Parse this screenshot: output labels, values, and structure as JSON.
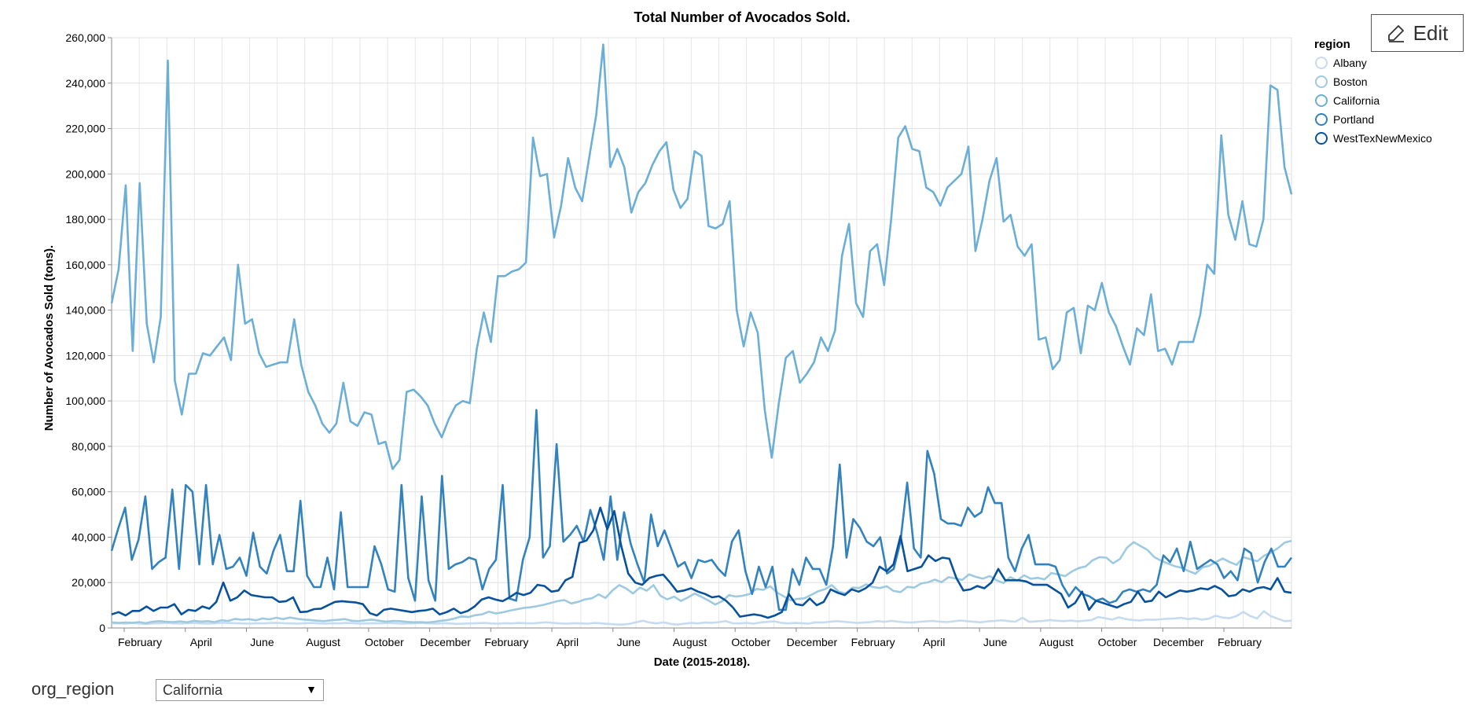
{
  "chart_data": {
    "type": "line",
    "title": "Total Number of Avocados Sold.",
    "xlabel": "Date (2015-2018).",
    "ylabel": "Number of Avocados Sold (tons).",
    "ylim": [
      0,
      260000
    ],
    "yticks": [
      0,
      20000,
      40000,
      60000,
      80000,
      100000,
      120000,
      140000,
      160000,
      180000,
      200000,
      220000,
      240000,
      260000
    ],
    "ytick_labels": [
      "0",
      "20,000",
      "40,000",
      "60,000",
      "80,000",
      "100,000",
      "120,000",
      "140,000",
      "160,000",
      "180,000",
      "200,000",
      "220,000",
      "240,000",
      "260,000"
    ],
    "xtick_labels": [
      "February",
      "April",
      "June",
      "August",
      "October",
      "December",
      "February",
      "April",
      "June",
      "August",
      "October",
      "December",
      "February",
      "April",
      "June",
      "August",
      "October",
      "December",
      "February"
    ],
    "grid": true,
    "legend": {
      "title": "region",
      "position": "top-right"
    },
    "series": [
      {
        "name": "Albany",
        "color": "#c6dbef",
        "values": [
          2000,
          2100,
          1900,
          2200,
          2000,
          1800,
          2000,
          2100,
          2300,
          2000,
          1900,
          2100,
          2200,
          2000,
          1900,
          2100,
          2300,
          2200,
          2100,
          2000,
          1900,
          2100,
          2000,
          2200,
          2300,
          2100,
          2000,
          1900,
          2100,
          2200,
          2000,
          1900,
          2100,
          2000,
          2200,
          2100,
          1900,
          2000,
          2100,
          2000,
          2200,
          2100,
          1900,
          2000,
          2100,
          2200,
          2000,
          1900,
          2100,
          2000,
          1800,
          1900,
          2000,
          2100,
          2200,
          2000,
          1900,
          2100,
          2000,
          2200,
          2100,
          2000,
          2300,
          2500,
          2200,
          2000,
          1900,
          2100,
          2000,
          1900,
          2200,
          2000,
          1800,
          1600,
          1500,
          1800,
          2500,
          3200,
          2400,
          2000,
          2500,
          1800,
          1500,
          1900,
          2200,
          2000,
          2400,
          2300,
          2600,
          3000,
          2100,
          2000,
          2200,
          1900,
          2400,
          2700,
          2900,
          2300,
          2000,
          2200,
          2100,
          1900,
          2500,
          2400,
          2700,
          3000,
          2800,
          2500,
          2200,
          2400,
          2600,
          3000,
          2700,
          3100,
          2800,
          2500,
          2400,
          2700,
          2900,
          3100,
          2800,
          2600,
          2900,
          3300,
          3000,
          2700,
          2500,
          2900,
          3100,
          3400,
          3000,
          2800,
          4500,
          2700,
          2900,
          3100,
          3500,
          3200,
          3000,
          3300,
          2900,
          3200,
          3500,
          4800,
          4300,
          3700,
          4700,
          3900,
          3500,
          3300,
          3700,
          3600,
          3800,
          4100,
          4200,
          4500,
          3900,
          4300,
          3700,
          4100,
          5400,
          4600,
          4300,
          5200,
          7100,
          5300,
          4200,
          7400,
          5200,
          4100,
          3000,
          3200
        ]
      },
      {
        "name": "Boston",
        "color": "#9ecae1",
        "values": [
          2500,
          2200,
          2400,
          2300,
          2600,
          2100,
          2800,
          3000,
          2700,
          2600,
          2900,
          2500,
          3200,
          2800,
          3000,
          2600,
          3400,
          3100,
          4000,
          3600,
          3900,
          3400,
          4200,
          3800,
          4500,
          3900,
          4600,
          4100,
          3700,
          3500,
          3200,
          3000,
          3400,
          3600,
          3900,
          3200,
          3000,
          3400,
          3700,
          3200,
          2800,
          3100,
          3000,
          2700,
          2500,
          2600,
          2400,
          2700,
          3200,
          3500,
          4200,
          5100,
          4800,
          5600,
          6000,
          7200,
          6400,
          6900,
          7600,
          8200,
          8800,
          9100,
          9600,
          10200,
          11000,
          11800,
          12300,
          10800,
          11500,
          12600,
          13100,
          14800,
          13200,
          16500,
          18900,
          17400,
          15200,
          17800,
          16400,
          18900,
          14200,
          12600,
          13800,
          11900,
          13400,
          15200,
          13700,
          12100,
          10300,
          11800,
          14500,
          13800,
          14200,
          15000,
          17200,
          16800,
          18400,
          15600,
          13900,
          12200,
          12800,
          13100,
          14600,
          16200,
          17100,
          18900,
          16000,
          15200,
          17800,
          17600,
          19200,
          18000,
          17600,
          18400,
          16300,
          15800,
          18100,
          17800,
          19600,
          20100,
          21300,
          20200,
          22400,
          21800,
          21200,
          23600,
          22500,
          21700,
          22900,
          21000,
          19800,
          22400,
          20900,
          23200,
          21700,
          22100,
          21400,
          24200,
          23600,
          22800,
          24900,
          26400,
          27100,
          29800,
          31200,
          31000,
          28500,
          30400,
          35300,
          37800,
          36100,
          34400,
          31200,
          29600,
          28400,
          27200,
          26500,
          25100,
          23900,
          26700,
          27400,
          29100,
          30600,
          29000,
          27800,
          31200,
          30300,
          29400,
          31800,
          33200,
          35100,
          37600,
          38400
        ]
      },
      {
        "name": "California",
        "color": "#6baed6",
        "values": [
          143000,
          158000,
          195000,
          122000,
          196000,
          134000,
          117000,
          137000,
          250000,
          109000,
          94000,
          112000,
          112000,
          121000,
          120000,
          124000,
          128000,
          118000,
          160000,
          134000,
          136000,
          121000,
          115000,
          116000,
          117000,
          117000,
          136000,
          116000,
          104000,
          98000,
          90000,
          86000,
          90000,
          108000,
          91000,
          89000,
          95000,
          94000,
          81000,
          82000,
          70000,
          74000,
          104000,
          105000,
          102000,
          98000,
          90000,
          84000,
          92000,
          98000,
          100000,
          99000,
          123000,
          139000,
          126000,
          155000,
          155000,
          157000,
          158000,
          161000,
          216000,
          199000,
          200000,
          172000,
          186000,
          207000,
          194000,
          188000,
          207000,
          226000,
          257000,
          203000,
          211000,
          203000,
          183000,
          192000,
          196000,
          204000,
          210000,
          214000,
          193000,
          185000,
          189000,
          210000,
          208000,
          177000,
          176000,
          178000,
          188000,
          140000,
          124000,
          139000,
          130000,
          96000,
          75000,
          99000,
          119000,
          122000,
          108000,
          112000,
          117000,
          128000,
          122000,
          131000,
          164000,
          178000,
          143000,
          137000,
          166000,
          169000,
          151000,
          180000,
          216000,
          221000,
          211000,
          210000,
          194000,
          192000,
          186000,
          194000,
          197000,
          200000,
          212000,
          166000,
          180000,
          197000,
          207000,
          179000,
          182000,
          168000,
          164000,
          169000,
          127000,
          128000,
          114000,
          118000,
          139000,
          141000,
          121000,
          142000,
          140000,
          152000,
          139000,
          133000,
          124000,
          116000,
          132000,
          129000,
          147000,
          122000,
          123000,
          116000,
          126000,
          126000,
          126000,
          138000,
          160000,
          156000,
          217000,
          182000,
          171000,
          188000,
          169000,
          168000,
          180000,
          239000,
          237000,
          203000,
          191000
        ]
      },
      {
        "name": "Portland",
        "color": "#3182bd",
        "values": [
          34000,
          44000,
          53000,
          30000,
          39000,
          58000,
          26000,
          29000,
          31000,
          61000,
          26000,
          63000,
          60000,
          28000,
          63000,
          28000,
          41000,
          26000,
          27000,
          31000,
          23000,
          42000,
          27000,
          24000,
          34000,
          41000,
          25000,
          25000,
          56000,
          23000,
          18000,
          18000,
          31000,
          17000,
          51000,
          18000,
          18000,
          18000,
          18000,
          36000,
          28000,
          17000,
          16000,
          63000,
          22000,
          12000,
          58000,
          21000,
          12000,
          67000,
          26000,
          28000,
          29000,
          31000,
          30000,
          17000,
          26000,
          30000,
          63000,
          13000,
          12000,
          30000,
          40000,
          96000,
          31000,
          36000,
          81000,
          38000,
          41000,
          45000,
          38000,
          52000,
          42000,
          30000,
          58000,
          30000,
          51000,
          37000,
          28000,
          20000,
          50000,
          36000,
          43000,
          35000,
          27000,
          29000,
          22000,
          30000,
          29000,
          30000,
          26000,
          23000,
          38000,
          43000,
          25000,
          15000,
          27000,
          18000,
          27000,
          8000,
          8000,
          26000,
          19000,
          31000,
          26000,
          26000,
          19000,
          36000,
          72000,
          31000,
          48000,
          44000,
          38000,
          36000,
          40000,
          24000,
          26000,
          38000,
          64000,
          35000,
          31000,
          78000,
          68000,
          48000,
          46000,
          46000,
          45000,
          53000,
          49000,
          51000,
          62000,
          55000,
          55000,
          31000,
          25000,
          35000,
          41000,
          28000,
          28000,
          28000,
          27000,
          19000,
          14000,
          18000,
          15000,
          14000,
          12000,
          13000,
          11000,
          12000,
          16000,
          17000,
          16000,
          17000,
          16000,
          19000,
          32000,
          29000,
          35000,
          25000,
          38000,
          26000,
          28000,
          30000,
          28000,
          22000,
          25000,
          21000,
          35000,
          33000,
          20000,
          29000,
          35000,
          27000,
          27000,
          31000
        ]
      },
      {
        "name": "WestTexNewMexico",
        "color": "#08519c",
        "values": [
          6000,
          7000,
          5500,
          7500,
          7500,
          9500,
          7500,
          9000,
          9000,
          10500,
          6000,
          8000,
          7500,
          9500,
          8500,
          11500,
          20000,
          12000,
          13500,
          16500,
          14500,
          14000,
          13500,
          13500,
          11500,
          11800,
          13500,
          7000,
          7200,
          8300,
          8500,
          10000,
          11500,
          11800,
          11500,
          11200,
          10500,
          6500,
          5500,
          8000,
          8500,
          8000,
          7500,
          7000,
          7500,
          7800,
          8500,
          6000,
          7000,
          8500,
          6500,
          7500,
          9500,
          12500,
          13500,
          12500,
          11800,
          13500,
          15500,
          14500,
          15500,
          19000,
          18500,
          16000,
          16500,
          21000,
          22500,
          37500,
          38500,
          43000,
          53000,
          43500,
          51500,
          36000,
          24000,
          20000,
          19000,
          22000,
          23000,
          23500,
          20000,
          16000,
          16500,
          17500,
          16000,
          15000,
          13500,
          14000,
          12000,
          9000,
          5000,
          5500,
          6000,
          5500,
          4500,
          5500,
          7000,
          15000,
          10500,
          10000,
          13000,
          10000,
          11500,
          17000,
          15500,
          14500,
          17000,
          16000,
          17500,
          20000,
          27000,
          25000,
          28000,
          40500,
          25000,
          26000,
          27000,
          32000,
          29500,
          31000,
          30500,
          22000,
          16500,
          17000,
          18500,
          17500,
          20000,
          26000,
          21000,
          21000,
          21000,
          20500,
          19000,
          19000,
          19000,
          17000,
          15000,
          9000,
          11000,
          16000,
          8000,
          12000,
          11000,
          10000,
          9000,
          10500,
          11500,
          16000,
          11500,
          12000,
          16000,
          13500,
          15000,
          16500,
          16000,
          16500,
          17500,
          17000,
          18500,
          17000,
          14000,
          14500,
          17000,
          16000,
          17500,
          18000,
          17000,
          22000,
          16000,
          15500
        ]
      }
    ]
  },
  "edit_button": {
    "label": "Edit"
  },
  "control": {
    "label": "org_region",
    "selected": "California"
  }
}
